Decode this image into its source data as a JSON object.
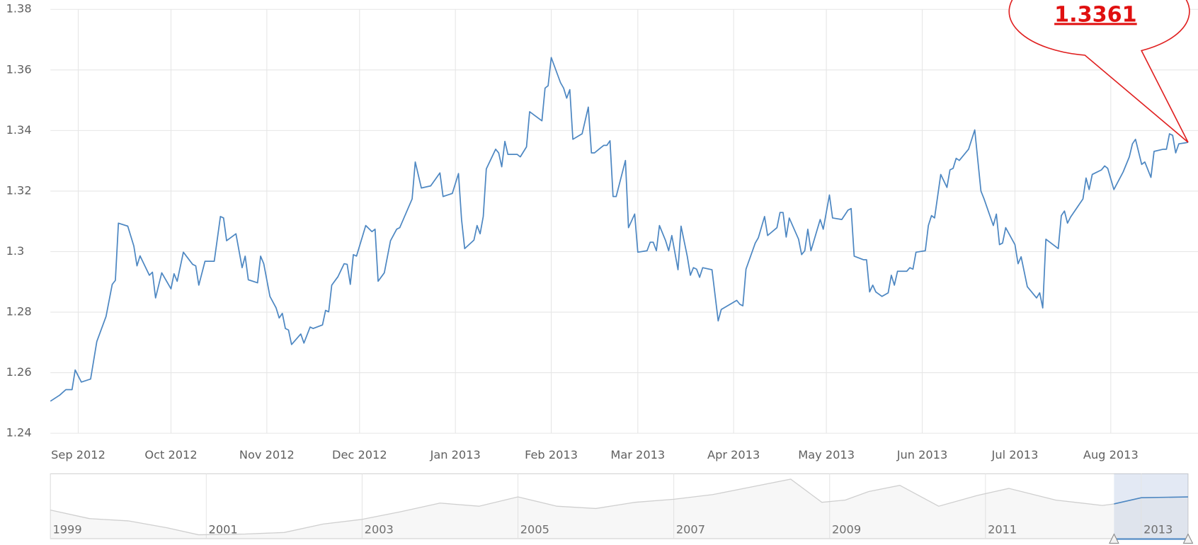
{
  "chart_data": {
    "type": "line",
    "color": "#4d87c2",
    "annotation": "1.3361",
    "x": [
      -9,
      -6,
      -4,
      -2,
      -1,
      1,
      4,
      6,
      9,
      11,
      12,
      13,
      16,
      18,
      19,
      20,
      23,
      24,
      25,
      27,
      30,
      31,
      32,
      34,
      37,
      38,
      39,
      41,
      44,
      46,
      47,
      48,
      51,
      53,
      54,
      55,
      58,
      59,
      60,
      62,
      64,
      65,
      66,
      67,
      68,
      69,
      72,
      73,
      75,
      76,
      79,
      80,
      81,
      82,
      84,
      86,
      87,
      88,
      89,
      90,
      93,
      95,
      96,
      97,
      99,
      101,
      103,
      104,
      108,
      109,
      111,
      114,
      117,
      118,
      121,
      123,
      124,
      125,
      128,
      129,
      130,
      131,
      132,
      135,
      136,
      137,
      138,
      139,
      142,
      143,
      145,
      146,
      150,
      151,
      152,
      153,
      156,
      157,
      158,
      159,
      160,
      163,
      165,
      166,
      167,
      169,
      170,
      171,
      172,
      173,
      174,
      177,
      178,
      180,
      181,
      184,
      185,
      186,
      187,
      188,
      190,
      191,
      192,
      194,
      195,
      197,
      198,
      199,
      200,
      201,
      202,
      205,
      207,
      208,
      213,
      214,
      215,
      216,
      219,
      220,
      222,
      223,
      226,
      227,
      228,
      229,
      230,
      233,
      234,
      235,
      236,
      237,
      240,
      241,
      243,
      244,
      247,
      249,
      250,
      251,
      254,
      255,
      256,
      257,
      258,
      260,
      262,
      263,
      264,
      265,
      268,
      269,
      270,
      271,
      274,
      275,
      276,
      277,
      279,
      281,
      282,
      283,
      284,
      285,
      288,
      290,
      292,
      293,
      296,
      297,
      298,
      299,
      300,
      303,
      304,
      305,
      307,
      310,
      311,
      312,
      313,
      317,
      318,
      319,
      320,
      321,
      325,
      326,
      327,
      328,
      331,
      332,
      333,
      335,
      338,
      340,
      341,
      342,
      344,
      345,
      347,
      348,
      351,
      352,
      353,
      354,
      355,
      356,
      358,
      359
    ],
    "values": [
      1.2506,
      1.2526,
      1.2544,
      1.2544,
      1.2609,
      1.2569,
      1.2579,
      1.2703,
      1.2786,
      1.2892,
      1.2905,
      1.3094,
      1.3084,
      1.3018,
      1.2953,
      1.2986,
      1.2922,
      1.2932,
      1.2847,
      1.293,
      1.2877,
      1.2927,
      1.2902,
      1.2998,
      1.2958,
      1.2953,
      1.2889,
      1.2968,
      1.2968,
      1.3116,
      1.3111,
      1.3036,
      1.3059,
      1.2947,
      1.2985,
      1.2907,
      1.2897,
      1.2985,
      1.296,
      1.2852,
      1.2814,
      1.2781,
      1.2796,
      1.2746,
      1.2741,
      1.2693,
      1.2728,
      1.2698,
      1.2751,
      1.2746,
      1.2758,
      1.2806,
      1.2801,
      1.2889,
      1.2917,
      1.296,
      1.2958,
      1.2892,
      1.299,
      1.2985,
      1.3086,
      1.3066,
      1.3074,
      1.2902,
      1.293,
      1.3036,
      1.3074,
      1.3079,
      1.3174,
      1.3296,
      1.321,
      1.3217,
      1.326,
      1.3182,
      1.3192,
      1.3258,
      1.3106,
      1.301,
      1.3038,
      1.3086,
      1.3059,
      1.3116,
      1.3273,
      1.3338,
      1.3326,
      1.328,
      1.3364,
      1.3321,
      1.3321,
      1.3313,
      1.3346,
      1.3462,
      1.3432,
      1.354,
      1.3548,
      1.3641,
      1.3558,
      1.354,
      1.3507,
      1.3535,
      1.3371,
      1.3389,
      1.3477,
      1.3326,
      1.3326,
      1.3343,
      1.3351,
      1.3351,
      1.3366,
      1.3182,
      1.3182,
      1.3301,
      1.3079,
      1.3124,
      1.2998,
      1.3003,
      1.3031,
      1.3031,
      1.3003,
      1.3086,
      1.3036,
      1.3003,
      1.3053,
      1.294,
      1.3084,
      1.2985,
      1.2922,
      1.2947,
      1.2942,
      1.2915,
      1.2947,
      1.294,
      1.2771,
      1.2809,
      1.2839,
      1.2826,
      1.2821,
      1.2942,
      1.3028,
      1.3046,
      1.3116,
      1.3053,
      1.3079,
      1.3129,
      1.3129,
      1.3048,
      1.3111,
      1.3041,
      1.299,
      1.3003,
      1.3074,
      1.3003,
      1.3106,
      1.3074,
      1.3187,
      1.3111,
      1.3106,
      1.3137,
      1.3142,
      1.2985,
      1.2973,
      1.2973,
      1.2867,
      1.2889,
      1.2867,
      1.2852,
      1.2864,
      1.2922,
      1.2889,
      1.2935,
      1.2935,
      1.2947,
      1.2942,
      1.2998,
      1.3003,
      1.3086,
      1.3119,
      1.3111,
      1.3255,
      1.3212,
      1.327,
      1.3275,
      1.3308,
      1.3301,
      1.3338,
      1.3402,
      1.32,
      1.3174,
      1.3086,
      1.3124,
      1.3023,
      1.3028,
      1.3079,
      1.3023,
      1.296,
      1.2983,
      1.2884,
      1.2847,
      1.2864,
      1.2814,
      1.3041,
      1.301,
      1.3119,
      1.3134,
      1.3094,
      1.3114,
      1.3174,
      1.3243,
      1.3205,
      1.3255,
      1.327,
      1.3283,
      1.3275,
      1.3205,
      1.3263,
      1.3313,
      1.3356,
      1.3371,
      1.3288,
      1.3296,
      1.3245,
      1.3331,
      1.3338,
      1.3338,
      1.3389,
      1.3384,
      1.3326,
      1.3356,
      1.3359,
      1.3361
    ],
    "xlim": [
      -9,
      359
    ],
    "xticks": [
      {
        "value": 0,
        "label": "Sep 2012"
      },
      {
        "value": 30,
        "label": "Oct 2012"
      },
      {
        "value": 61,
        "label": "Nov 2012"
      },
      {
        "value": 91,
        "label": "Dec 2012"
      },
      {
        "value": 122,
        "label": "Jan 2013"
      },
      {
        "value": 153,
        "label": "Feb 2013"
      },
      {
        "value": 181,
        "label": "Mar 2013"
      },
      {
        "value": 212,
        "label": "Apr 2013"
      },
      {
        "value": 242,
        "label": "May 2013"
      },
      {
        "value": 273,
        "label": "Jun 2013"
      },
      {
        "value": 303,
        "label": "Jul 2013"
      },
      {
        "value": 334,
        "label": "Aug 2013"
      }
    ],
    "ylim": [
      1.24,
      1.38
    ],
    "yticks": [
      1.24,
      1.26,
      1.28,
      {
        "value": 1.3,
        "label": "1.3"
      },
      1.32,
      1.34,
      1.36,
      1.38
    ],
    "grid": true,
    "navigator": {
      "x": [
        1999,
        1999.5,
        2000,
        2000.5,
        2000.9,
        2001.5,
        2002,
        2002.5,
        2003,
        2003.5,
        2004,
        2004.5,
        2005,
        2005.5,
        2006,
        2006.5,
        2007,
        2007.5,
        2008,
        2008.5,
        2008.9,
        2009.2,
        2009.5,
        2009.9,
        2010.4,
        2010.9,
        2011.3,
        2011.9,
        2012.5,
        2012.65,
        2013,
        2013.6
      ],
      "values": [
        1.17,
        1.06,
        1.03,
        0.94,
        0.85,
        0.86,
        0.88,
        0.99,
        1.05,
        1.15,
        1.26,
        1.22,
        1.34,
        1.22,
        1.19,
        1.27,
        1.31,
        1.37,
        1.47,
        1.57,
        1.27,
        1.3,
        1.41,
        1.49,
        1.22,
        1.36,
        1.45,
        1.3,
        1.23,
        1.25,
        1.33,
        1.34
      ],
      "xlim": [
        1999,
        2013.6
      ],
      "ylim": [
        0.8,
        1.62
      ],
      "xticks": [
        1999,
        2001,
        2003,
        2005,
        2007,
        2009,
        2011,
        2013
      ],
      "range": [
        2012.65,
        2013.6
      ]
    }
  }
}
